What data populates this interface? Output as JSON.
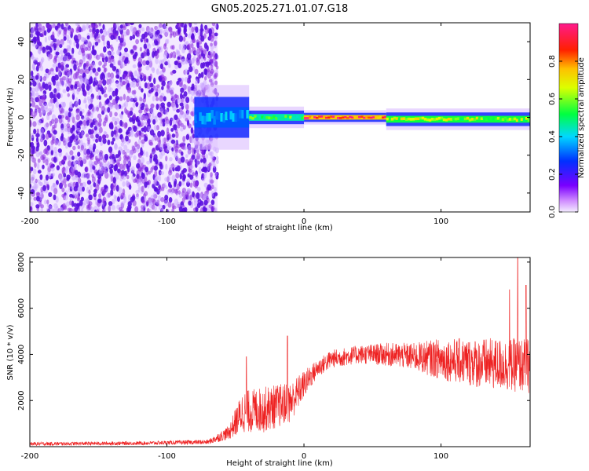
{
  "title": "GN05.2025.271.01.07.G18",
  "colors": {
    "snr_line": "#ee2222",
    "frame": "#000000",
    "noise": "#8a2be2",
    "noise_dark": "#5b10e0",
    "core": "#ff3300"
  },
  "chart_data": [
    {
      "type": "heatmap",
      "title": "GN05.2025.271.01.07.G18",
      "xlabel": "Height of straight line (km)",
      "ylabel": "Frequency (Hz)",
      "xlim": [
        -200,
        165
      ],
      "ylim": [
        -50,
        50
      ],
      "xticks": [
        -200,
        -100,
        0,
        100
      ],
      "xtick_labels": [
        "-200",
        "-100",
        "0",
        "100"
      ],
      "yticks": [
        -40,
        -20,
        0,
        20,
        40
      ],
      "ytick_labels": [
        "-40",
        "-20",
        "0",
        "20",
        "40"
      ],
      "colorbar": {
        "label": "Normalized spectral amplitude",
        "range": [
          0,
          1
        ],
        "ticks": [
          0.0,
          0.2,
          0.4,
          0.6,
          0.8
        ],
        "tick_labels": [
          "0.0",
          "0.2",
          "0.4",
          "0.6",
          "0.8"
        ],
        "colormap": "rainbow (purple-blue-cyan-green-yellow-red-magenta)"
      },
      "regions": [
        {
          "x_range": [
            -200,
            -63
          ],
          "freq_range": [
            -50,
            50
          ],
          "amplitude": 0.1,
          "description": "broadband noise"
        },
        {
          "x_range": [
            -80,
            -40
          ],
          "freq_center": 0,
          "freq_width": 18,
          "amplitude": 0.4
        },
        {
          "x_range": [
            -40,
            0
          ],
          "freq_center": 0,
          "freq_width": 6,
          "amplitude": 0.6
        },
        {
          "x_range": [
            0,
            60
          ],
          "freq_center": 0,
          "freq_width": 4,
          "amplitude": 1.0
        },
        {
          "x_range": [
            60,
            165
          ],
          "freq_center": -1,
          "freq_width": 6,
          "amplitude": 0.7
        }
      ]
    },
    {
      "type": "line",
      "xlabel": "Height of straight line (km)",
      "ylabel": "SNR (10 * v/v)",
      "xlim": [
        -200,
        165
      ],
      "ylim": [
        0,
        8200
      ],
      "xticks": [
        -200,
        -100,
        0,
        100
      ],
      "xtick_labels": [
        "-200",
        "-100",
        "0",
        "100"
      ],
      "yticks": [
        2000,
        4000,
        6000,
        8000
      ],
      "ytick_labels": [
        "2000",
        "4000",
        "6000",
        "8000"
      ],
      "envelope": [
        {
          "x": -200,
          "mean": 120,
          "spread": 80
        },
        {
          "x": -120,
          "mean": 150,
          "spread": 80
        },
        {
          "x": -70,
          "mean": 200,
          "spread": 100
        },
        {
          "x": -55,
          "mean": 600,
          "spread": 300
        },
        {
          "x": -45,
          "mean": 1500,
          "spread": 900
        },
        {
          "x": -30,
          "mean": 1600,
          "spread": 1000
        },
        {
          "x": -10,
          "mean": 1900,
          "spread": 900
        },
        {
          "x": 0,
          "mean": 2700,
          "spread": 600
        },
        {
          "x": 10,
          "mean": 3400,
          "spread": 400
        },
        {
          "x": 20,
          "mean": 3800,
          "spread": 400
        },
        {
          "x": 40,
          "mean": 4000,
          "spread": 400
        },
        {
          "x": 60,
          "mean": 4000,
          "spread": 500
        },
        {
          "x": 80,
          "mean": 3900,
          "spread": 600
        },
        {
          "x": 100,
          "mean": 3800,
          "spread": 900
        },
        {
          "x": 130,
          "mean": 3600,
          "spread": 1100
        },
        {
          "x": 165,
          "mean": 3500,
          "spread": 1200
        }
      ],
      "peaks": [
        {
          "x": -12,
          "y": 4800
        },
        {
          "x": -42,
          "y": 3900
        },
        {
          "x": 150,
          "y": 6800
        },
        {
          "x": 156,
          "y": 8200
        },
        {
          "x": 162,
          "y": 7000
        }
      ]
    }
  ]
}
